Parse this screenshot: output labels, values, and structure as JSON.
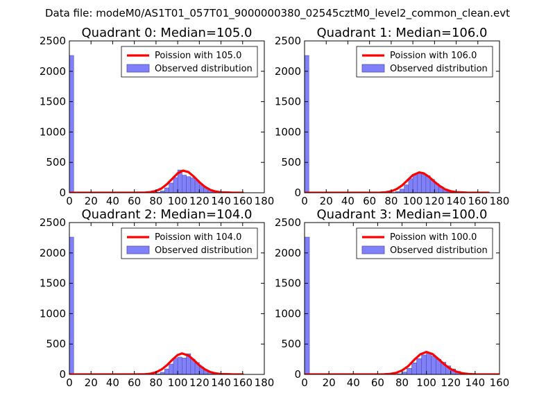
{
  "figure": {
    "suptitle": "Data file: modeM0/AS1T01_057T01_9000000380_02545cztM0_level2_common_clean.evt"
  },
  "colors": {
    "histogram_fill": "#8080f8",
    "histogram_edge": "#5050b0",
    "poisson_line": "#ff0000",
    "axes": "#000000",
    "background": "#ffffff"
  },
  "chart_data": [
    {
      "type": "bar",
      "title": "Quadrant 0: Median=105.0",
      "xlabel": "",
      "ylabel": "",
      "xlim": [
        0,
        180
      ],
      "ylim": [
        0,
        2500
      ],
      "xticks": [
        0,
        20,
        40,
        60,
        80,
        100,
        120,
        140,
        160,
        180
      ],
      "yticks": [
        0,
        500,
        1000,
        1500,
        2000,
        2500
      ],
      "grid": false,
      "legend": "top-right",
      "bin_width": 4,
      "series": [
        {
          "name": "Observed distribution",
          "type": "histogram",
          "bins": [
            0,
            4,
            8,
            12,
            16,
            20,
            24,
            28,
            32,
            36,
            40,
            44,
            48,
            52,
            56,
            60,
            64,
            68,
            72,
            76,
            80,
            84,
            88,
            92,
            96,
            100,
            104,
            108,
            112,
            116,
            120,
            124,
            128,
            132,
            136,
            140,
            144,
            148,
            152,
            156
          ],
          "counts": [
            2260,
            0,
            0,
            0,
            0,
            0,
            0,
            0,
            0,
            0,
            0,
            0,
            0,
            0,
            0,
            0,
            0,
            0,
            0,
            0,
            8,
            30,
            80,
            160,
            250,
            375,
            290,
            265,
            245,
            200,
            130,
            80,
            45,
            25,
            10,
            5,
            2,
            1,
            0,
            0
          ]
        },
        {
          "name": "Poission with 105.0",
          "type": "line",
          "x": [
            0,
            20,
            40,
            60,
            70,
            75,
            80,
            85,
            90,
            95,
            100,
            105,
            110,
            115,
            120,
            125,
            130,
            135,
            140,
            150,
            160
          ],
          "y": [
            0,
            0,
            0,
            0,
            3,
            10,
            30,
            70,
            140,
            230,
            320,
            365,
            340,
            265,
            175,
            100,
            48,
            20,
            8,
            1,
            0
          ]
        }
      ]
    },
    {
      "type": "bar",
      "title": "Quadrant 1: Median=106.0",
      "xlabel": "",
      "ylabel": "",
      "xlim": [
        0,
        180
      ],
      "ylim": [
        0,
        2500
      ],
      "xticks": [
        0,
        20,
        40,
        60,
        80,
        100,
        120,
        140,
        160,
        180
      ],
      "yticks": [
        0,
        500,
        1000,
        1500,
        2000,
        2500
      ],
      "grid": false,
      "legend": "top-right",
      "bin_width": 4,
      "series": [
        {
          "name": "Observed distribution",
          "type": "histogram",
          "bins": [
            0,
            4,
            8,
            12,
            16,
            20,
            24,
            28,
            32,
            36,
            40,
            44,
            48,
            52,
            56,
            60,
            64,
            68,
            72,
            76,
            80,
            84,
            88,
            92,
            96,
            100,
            104,
            108,
            112,
            116,
            120,
            124,
            128,
            132,
            136,
            140,
            144,
            148,
            152,
            156,
            160,
            164
          ],
          "counts": [
            2260,
            0,
            0,
            0,
            0,
            0,
            0,
            0,
            0,
            0,
            0,
            0,
            0,
            0,
            0,
            0,
            0,
            0,
            0,
            0,
            5,
            20,
            60,
            130,
            230,
            290,
            320,
            300,
            280,
            220,
            150,
            100,
            60,
            35,
            20,
            10,
            5,
            2,
            1,
            0,
            0,
            0
          ]
        },
        {
          "name": "Poission with 106.0",
          "type": "line",
          "x": [
            0,
            20,
            40,
            60,
            70,
            75,
            80,
            85,
            90,
            95,
            100,
            106,
            110,
            115,
            120,
            125,
            130,
            135,
            140,
            150,
            160,
            170
          ],
          "y": [
            0,
            0,
            0,
            0,
            2,
            8,
            25,
            60,
            120,
            205,
            290,
            335,
            320,
            260,
            180,
            110,
            55,
            25,
            10,
            2,
            0,
            0
          ]
        }
      ]
    },
    {
      "type": "bar",
      "title": "Quadrant 2: Median=104.0",
      "xlabel": "",
      "ylabel": "",
      "xlim": [
        0,
        180
      ],
      "ylim": [
        0,
        2500
      ],
      "xticks": [
        0,
        20,
        40,
        60,
        80,
        100,
        120,
        140,
        160,
        180
      ],
      "yticks": [
        0,
        500,
        1000,
        1500,
        2000,
        2500
      ],
      "grid": false,
      "legend": "top-right",
      "bin_width": 4,
      "series": [
        {
          "name": "Observed distribution",
          "type": "histogram",
          "bins": [
            0,
            4,
            8,
            12,
            16,
            20,
            24,
            28,
            32,
            36,
            40,
            44,
            48,
            52,
            56,
            60,
            64,
            68,
            72,
            76,
            80,
            84,
            88,
            92,
            96,
            100,
            104,
            108,
            112,
            116,
            120,
            124,
            128,
            132,
            136,
            140,
            144,
            148,
            152,
            156
          ],
          "counts": [
            2260,
            0,
            0,
            0,
            0,
            0,
            0,
            0,
            0,
            0,
            0,
            0,
            0,
            0,
            0,
            0,
            0,
            0,
            0,
            0,
            10,
            35,
            90,
            170,
            265,
            285,
            270,
            340,
            250,
            195,
            120,
            70,
            40,
            20,
            10,
            4,
            2,
            1,
            0,
            0
          ]
        },
        {
          "name": "Poission with 104.0",
          "type": "line",
          "x": [
            0,
            20,
            40,
            60,
            70,
            75,
            80,
            85,
            90,
            95,
            100,
            104,
            110,
            115,
            120,
            125,
            130,
            135,
            140,
            150,
            160
          ],
          "y": [
            0,
            0,
            0,
            0,
            3,
            12,
            35,
            80,
            150,
            240,
            320,
            345,
            310,
            235,
            150,
            85,
            40,
            17,
            6,
            1,
            0
          ]
        }
      ]
    },
    {
      "type": "bar",
      "title": "Quadrant 3: Median=100.0",
      "xlabel": "",
      "ylabel": "",
      "xlim": [
        0,
        160
      ],
      "ylim": [
        0,
        2500
      ],
      "xticks": [
        0,
        20,
        40,
        60,
        80,
        100,
        120,
        140,
        160
      ],
      "yticks": [
        0,
        500,
        1000,
        1500,
        2000,
        2500
      ],
      "grid": false,
      "legend": "top-right",
      "bin_width": 4,
      "series": [
        {
          "name": "Observed distribution",
          "type": "histogram",
          "bins": [
            0,
            4,
            8,
            12,
            16,
            20,
            24,
            28,
            32,
            36,
            40,
            44,
            48,
            52,
            56,
            60,
            64,
            68,
            72,
            76,
            80,
            84,
            88,
            92,
            96,
            100,
            104,
            108,
            112,
            116,
            120,
            124,
            128,
            132,
            136,
            140,
            144,
            148
          ],
          "counts": [
            2260,
            0,
            0,
            0,
            0,
            0,
            0,
            0,
            0,
            0,
            0,
            0,
            0,
            0,
            0,
            0,
            0,
            0,
            0,
            10,
            40,
            100,
            190,
            260,
            320,
            355,
            300,
            250,
            200,
            140,
            90,
            50,
            25,
            12,
            5,
            2,
            1,
            0
          ]
        },
        {
          "name": "Poission with 100.0",
          "type": "line",
          "x": [
            0,
            20,
            40,
            60,
            65,
            70,
            75,
            80,
            85,
            90,
            95,
            100,
            105,
            110,
            115,
            120,
            125,
            130,
            135,
            140,
            150,
            160
          ],
          "y": [
            0,
            0,
            0,
            0,
            2,
            8,
            25,
            65,
            135,
            240,
            330,
            370,
            335,
            250,
            160,
            88,
            42,
            17,
            6,
            2,
            0,
            0
          ]
        }
      ]
    }
  ]
}
